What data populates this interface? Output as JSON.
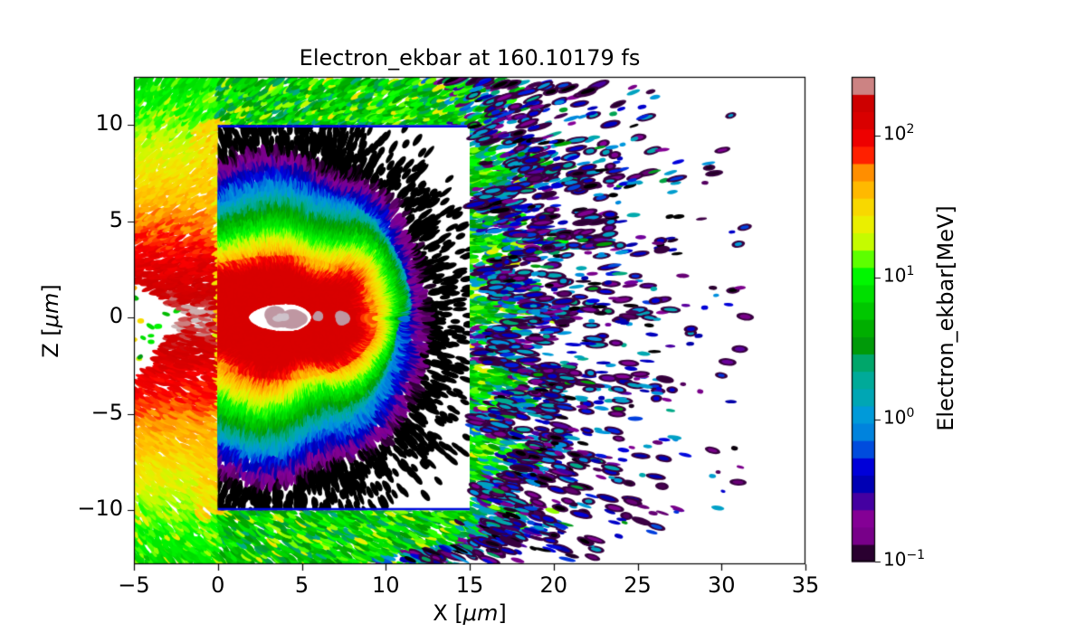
{
  "title": "Electron_ekbar at 160.10179 fs",
  "axes": {
    "xlabel": {
      "prefix": "X [",
      "unit": "μm",
      "suffix": "]"
    },
    "ylabel": {
      "prefix": "Z [",
      "unit": "μm",
      "suffix": "]"
    },
    "xticks": [
      {
        "label": "−5",
        "value": -5
      },
      {
        "label": "0",
        "value": 0
      },
      {
        "label": "5",
        "value": 5
      },
      {
        "label": "10",
        "value": 10
      },
      {
        "label": "15",
        "value": 15
      },
      {
        "label": "20",
        "value": 20
      },
      {
        "label": "25",
        "value": 25
      },
      {
        "label": "30",
        "value": 30
      },
      {
        "label": "35",
        "value": 35
      }
    ],
    "yticks": [
      {
        "label": "10",
        "value": 10
      },
      {
        "label": "5",
        "value": 5
      },
      {
        "label": "0",
        "value": 0
      },
      {
        "label": "−5",
        "value": -5
      },
      {
        "label": "−10",
        "value": -10
      }
    ]
  },
  "colorbar": {
    "label": "Electron_ekbar[MeV]",
    "ticks": [
      {
        "base": "10",
        "exp": "2",
        "frac": 0.1215
      },
      {
        "base": "10",
        "exp": "1",
        "frac": 0.4143
      },
      {
        "base": "10",
        "exp": "0",
        "frac": 0.7072
      },
      {
        "base": "10",
        "exp": "−1",
        "frac": 1.0
      }
    ],
    "segments": 28
  },
  "chart_data": {
    "type": "heatmap",
    "title": "Electron_ekbar at 160.10179 fs",
    "xlabel": "X [μm]",
    "ylabel": "Z [μm]",
    "colorbar_label": "Electron_ekbar[MeV]",
    "x_range_um": [
      -5,
      35
    ],
    "z_range_um": [
      -12.8,
      12.5
    ],
    "value_scale": "log10",
    "value_range_mev": [
      0.1,
      260
    ],
    "colormap": "nipy_spectral",
    "colormap_stops": [
      [
        0.0,
        0,
        0,
        0
      ],
      [
        0.05,
        119,
        0,
        136
      ],
      [
        0.1,
        136,
        0,
        153
      ],
      [
        0.15,
        0,
        0,
        170
      ],
      [
        0.2,
        0,
        0,
        221
      ],
      [
        0.25,
        0,
        119,
        221
      ],
      [
        0.3,
        0,
        153,
        221
      ],
      [
        0.35,
        0,
        170,
        170
      ],
      [
        0.4,
        0,
        170,
        136
      ],
      [
        0.45,
        0,
        153,
        0
      ],
      [
        0.5,
        0,
        187,
        0
      ],
      [
        0.55,
        0,
        221,
        0
      ],
      [
        0.6,
        0,
        255,
        0
      ],
      [
        0.65,
        187,
        255,
        0
      ],
      [
        0.7,
        238,
        238,
        0
      ],
      [
        0.75,
        255,
        204,
        0
      ],
      [
        0.8,
        255,
        153,
        0
      ],
      [
        0.85,
        255,
        0,
        0
      ],
      [
        0.9,
        221,
        0,
        0
      ],
      [
        0.95,
        204,
        0,
        0
      ],
      [
        1.0,
        204,
        204,
        204
      ]
    ],
    "features": {
      "inner_window_um": {
        "x0": 0,
        "x1": 15,
        "z0": -10,
        "z1": 10
      },
      "jet_core": {
        "center_x": 4.1,
        "center_z": 0,
        "red_tip_x": 8.7,
        "red_left_x": -2.2,
        "red_half_width_z": 2.5,
        "peak_mev": 130
      },
      "gray_hot_spots": [
        {
          "x": 4.05,
          "z": 0.0,
          "rx": 1.15,
          "rz": 0.5
        },
        {
          "x": 7.45,
          "z": 0.0,
          "rx": 0.3,
          "rz": 0.3
        },
        {
          "x": 5.95,
          "z": 0.1,
          "rx": 0.18,
          "rz": 0.18
        }
      ],
      "shell_log_decay_um": 2.0,
      "left_plume": {
        "peak_mev": 230,
        "z_decay_um": 3.6,
        "shadow_gap": {
          "x_max": -2.2,
          "z_top": 1.7,
          "z_bottom": -3.3
        }
      },
      "ambient_band": {
        "x_edge_um": 17.4,
        "value_range_mev": [
          2.5,
          18
        ]
      },
      "ejecta_flecks": {
        "x_start_um": 16,
        "x_max_um": 31.5,
        "decay_um": 3.3,
        "value_range_mev": [
          0.1,
          1.8
        ]
      },
      "window_edge_line_mev": 0.5
    },
    "render_seed": 7
  }
}
